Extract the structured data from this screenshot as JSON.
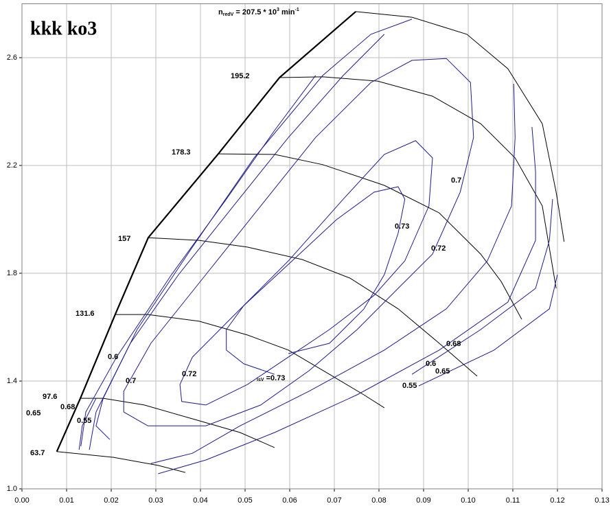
{
  "chart_data": {
    "type": "line",
    "title": "kkk ko3",
    "xlim": [
      0,
      0.13
    ],
    "ylim": [
      1.0,
      2.8
    ],
    "xticks": [
      {
        "value": 0,
        "label": "0.00"
      },
      0.01,
      0.02,
      0.03,
      0.04,
      0.05,
      0.06,
      0.07,
      0.08,
      0.09,
      {
        "value": 0.1,
        "label": "0.10"
      },
      0.11,
      0.12,
      0.13
    ],
    "yticks": [
      {
        "value": 1,
        "label": "1.0"
      },
      1.4,
      1.8,
      2.2,
      2.6
    ],
    "grid": true,
    "top_label": [
      "n",
      "redV",
      " = 207.5 * 10",
      "3",
      " min",
      "-1"
    ],
    "efficiency_label": [
      "isV",
      " =0.73"
    ],
    "annotations": [
      "0.65",
      "0.68",
      "0.55",
      "0.6",
      "0.7",
      "0.72",
      "0.73",
      "0.72",
      "0.7",
      "0.68",
      "0.6",
      "0.65",
      "0.55"
    ],
    "surge": {
      "color": "#000000",
      "x": [
        0.0078,
        0.0131,
        0.0209,
        0.0283,
        0.044,
        0.0577,
        0.0748
      ],
      "y": [
        1.138,
        1.336,
        1.647,
        1.932,
        2.243,
        2.526,
        2.771
      ]
    },
    "series": [
      {
        "name": "63.7",
        "color": "#000000",
        "x": [
          0.0078,
          0.0128,
          0.0205,
          0.0305,
          0.0366
        ],
        "y": [
          1.138,
          1.13,
          1.117,
          1.087,
          1.061
        ]
      },
      {
        "name": "97.6",
        "color": "#000000",
        "x": [
          0.0131,
          0.0182,
          0.0274,
          0.0382,
          0.0489,
          0.0566
        ],
        "y": [
          1.336,
          1.336,
          1.311,
          1.26,
          1.209,
          1.153
        ]
      },
      {
        "name": "131.6",
        "color": "#000000",
        "x": [
          0.0209,
          0.0282,
          0.0397,
          0.0505,
          0.0597,
          0.0689,
          0.0766,
          0.0812
        ],
        "y": [
          1.647,
          1.647,
          1.622,
          1.571,
          1.515,
          1.425,
          1.349,
          1.301
        ]
      },
      {
        "name": "157",
        "color": "#000000",
        "x": [
          0.0283,
          0.0397,
          0.0505,
          0.0628,
          0.0735,
          0.0843,
          0.0935,
          0.102
        ],
        "y": [
          1.932,
          1.922,
          1.897,
          1.851,
          1.782,
          1.668,
          1.54,
          1.418
        ]
      },
      {
        "name": "178.3",
        "color": "#000000",
        "x": [
          0.044,
          0.0566,
          0.0674,
          0.0812,
          0.0935,
          0.1028,
          0.1074,
          0.112
        ],
        "y": [
          2.243,
          2.241,
          2.203,
          2.126,
          2.024,
          1.871,
          1.769,
          1.629
        ]
      },
      {
        "name": "195.2",
        "color": "#000000",
        "x": [
          0.0577,
          0.0674,
          0.0797,
          0.092,
          0.1028,
          0.1105,
          0.1166,
          0.1197
        ],
        "y": [
          2.526,
          2.529,
          2.513,
          2.457,
          2.355,
          2.228,
          2.05,
          1.744
        ]
      },
      {
        "color": "#000000",
        "x": [
          0.0748,
          0.0874,
          0.0997,
          0.1089,
          0.1166,
          0.1197,
          0.1215
        ],
        "y": [
          2.771,
          2.75,
          2.687,
          2.559,
          2.355,
          2.101,
          1.917
        ]
      },
      {
        "color": "#1c1c8a",
        "x": [
          0.0566,
          0.0497,
          0.0458,
          0.0458,
          0.0497,
          0.0597,
          0.0705,
          0.0789,
          0.0843,
          0.0858,
          0.0843,
          0.0812,
          0.0766,
          0.0689,
          0.0597
        ],
        "y": [
          1.425,
          1.464,
          1.515,
          1.591,
          1.68,
          1.833,
          1.999,
          2.101,
          2.121,
          2.075,
          1.948,
          1.795,
          1.667,
          1.54,
          1.502
        ]
      },
      {
        "color": "#1c1c8a",
        "x": [
          0.0412,
          0.0358,
          0.0354,
          0.0382,
          0.0474,
          0.0597,
          0.072,
          0.0812,
          0.0882,
          0.092,
          0.0912,
          0.0858,
          0.0789,
          0.0689,
          0.0597,
          0.0505,
          0.0412
        ],
        "y": [
          1.311,
          1.324,
          1.387,
          1.489,
          1.642,
          1.846,
          2.075,
          2.241,
          2.292,
          2.228,
          2.05,
          1.846,
          1.718,
          1.591,
          1.489,
          1.387,
          1.311
        ]
      },
      {
        "color": "#1c1c8a",
        "x": [
          0.0282,
          0.0228,
          0.0228,
          0.0289,
          0.0412,
          0.0535,
          0.0658,
          0.0782,
          0.0874,
          0.0951,
          0.1005,
          0.1012,
          0.0982,
          0.092,
          0.0843,
          0.0751,
          0.0643,
          0.0535,
          0.0412,
          0.0282
        ],
        "y": [
          1.234,
          1.285,
          1.362,
          1.54,
          1.795,
          2.05,
          2.304,
          2.508,
          2.59,
          2.597,
          2.508,
          2.304,
          2.101,
          1.871,
          1.744,
          1.591,
          1.438,
          1.311,
          1.234,
          1.234
        ]
      },
      {
        "color": "#1c1c8a",
        "x": [
          0.0197,
          0.0166,
          0.0182,
          0.0258,
          0.0382,
          0.052,
          0.0674,
          0.0782,
          0.0874,
          null,
          0.0289,
          0.0382,
          0.0489,
          0.0643,
          0.0812,
          0.0951,
          0.1043,
          0.1097,
          0.1105,
          0.1102
        ],
        "y": [
          1.183,
          1.234,
          1.336,
          1.591,
          1.897,
          2.228,
          2.534,
          2.687,
          2.743,
          null,
          1.094,
          1.132,
          1.234,
          1.362,
          1.515,
          1.668,
          1.846,
          2.05,
          2.304,
          2.503
        ]
      },
      {
        "color": "#1c1c8a",
        "x": [
          0.0151,
          0.0166,
          0.0243,
          0.0351,
          0.0474,
          0.0597,
          0.072,
          0.0812,
          null,
          0.0305,
          0.0412,
          0.0566,
          0.0751,
          0.0935,
          0.1089,
          0.1151,
          0.1151,
          0.1143
        ],
        "y": [
          1.145,
          1.285,
          1.54,
          1.795,
          2.05,
          2.304,
          2.534,
          2.687,
          null,
          1.056,
          1.107,
          1.209,
          1.349,
          1.515,
          1.693,
          1.922,
          2.177,
          2.343
        ]
      },
      {
        "color": "#1c1c8a",
        "x": [
          0.0132,
          0.0143,
          0.0212,
          0.0335,
          0.0458,
          0.0566,
          0.0658,
          null,
          0.0874,
          0.1028,
          0.1151,
          0.1182,
          0.1189
        ],
        "y": [
          1.158,
          1.285,
          1.489,
          1.795,
          2.075,
          2.33,
          2.534,
          null,
          1.425,
          1.591,
          1.744,
          1.922,
          2.075
        ]
      },
      {
        "color": "#1c1c8a",
        "x": [
          0.0128,
          0.0135,
          0.0166,
          null,
          0.0889,
          0.1058,
          0.1182,
          0.12
        ],
        "y": [
          1.145,
          1.234,
          1.336,
          null,
          1.382,
          1.515,
          1.668,
          1.795
        ]
      }
    ]
  }
}
